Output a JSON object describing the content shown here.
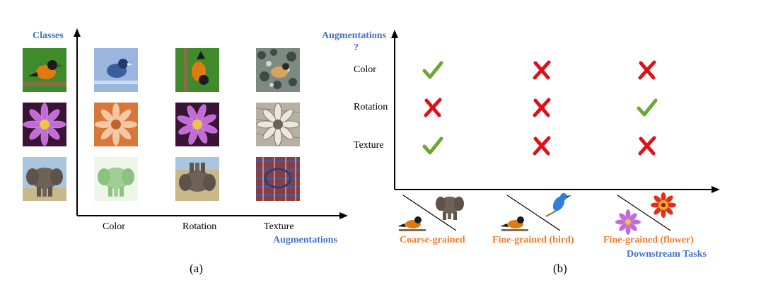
{
  "panel_a": {
    "classes_label": "Classes",
    "x_axis_label": "Augmentations",
    "columns": [
      "Color",
      "Rotation",
      "Texture"
    ],
    "caption": "(a)",
    "rows": [
      {
        "class": "bird",
        "colors": {
          "bg": "#3f8a2a",
          "body": "#e07a10",
          "accent": "#1b1b1b"
        }
      },
      {
        "class": "flower",
        "colors": {
          "bg": "#3a1436",
          "body": "#c26ad6",
          "accent": "#e9c64a"
        }
      },
      {
        "class": "elephant",
        "colors": {
          "bg": "#a9c6de",
          "body": "#6e6258",
          "accent": "#c9b98a"
        }
      }
    ],
    "augmentation_tints": {
      "color": [
        "#9ab6df",
        "#d9773b",
        "#9fcf94"
      ],
      "texture": [
        "#7c8a82",
        "#b7b0a5",
        "#8a3d3d"
      ]
    }
  },
  "panel_b": {
    "y_axis_label": "Augmentations",
    "y_axis_question": "?",
    "x_axis_label": "Downstream Tasks",
    "rows": [
      "Color",
      "Rotation",
      "Texture"
    ],
    "tasks": [
      "Coarse-grained",
      "Fine-grained (bird)",
      "Fine-grained (flower)"
    ],
    "matrix": [
      [
        "check",
        "cross",
        "cross"
      ],
      [
        "cross",
        "cross",
        "check"
      ],
      [
        "check",
        "cross",
        "cross"
      ]
    ],
    "check_color": "#6aa832",
    "cross_color": "#e0101a",
    "caption": "(b)"
  }
}
